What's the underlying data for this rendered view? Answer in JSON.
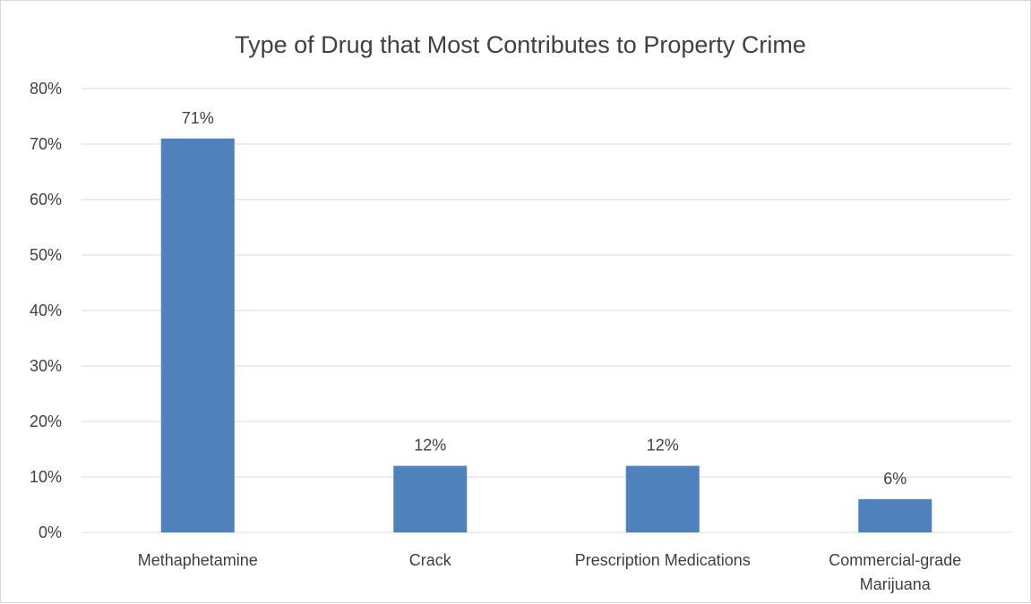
{
  "chart_data": {
    "type": "bar",
    "title": "Type of Drug that Most Contributes to Property Crime",
    "categories": [
      "Methaphetamine",
      "Crack",
      "Prescription Medications",
      "Commercial-grade Marijuana"
    ],
    "category_label_lines": [
      [
        "Methaphetamine"
      ],
      [
        "Crack"
      ],
      [
        "Prescription Medications"
      ],
      [
        "Commercial-grade",
        "Marijuana"
      ]
    ],
    "values": [
      71,
      12,
      12,
      6
    ],
    "data_labels": [
      "71%",
      "12%",
      "12%",
      "6%"
    ],
    "ylim": [
      0,
      80
    ],
    "yticks": [
      0,
      10,
      20,
      30,
      40,
      50,
      60,
      70,
      80
    ],
    "ytick_labels": [
      "0%",
      "10%",
      "20%",
      "30%",
      "40%",
      "50%",
      "60%",
      "70%",
      "80%"
    ],
    "xlabel": "",
    "ylabel": "",
    "grid": true,
    "legend": "none",
    "colors": {
      "bar": "#4f81bd",
      "grid": "#d9d9d9",
      "text": "#404040"
    }
  }
}
